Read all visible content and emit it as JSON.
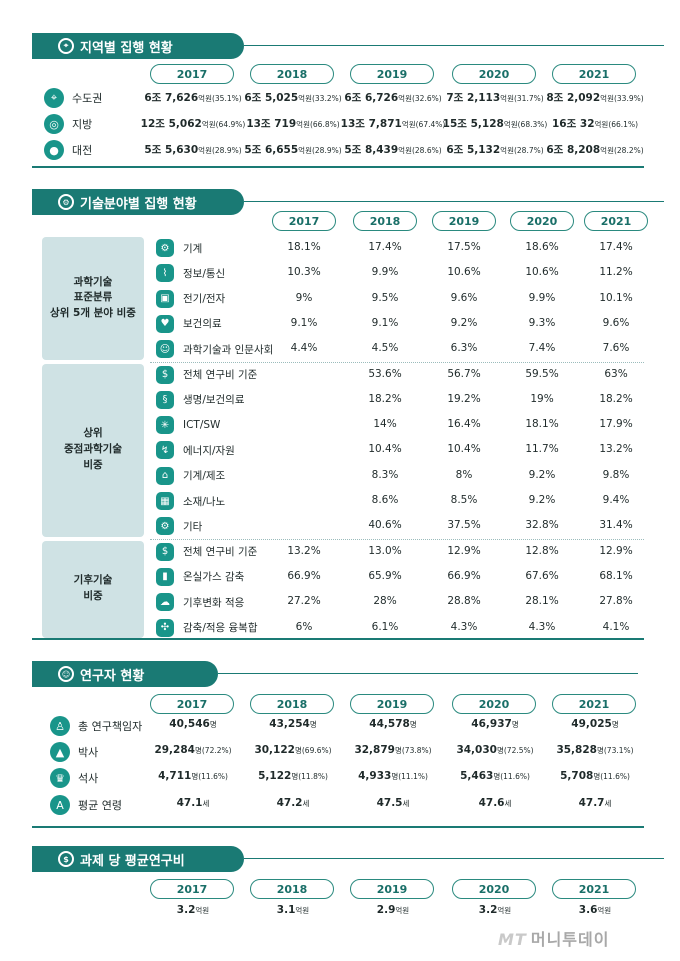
{
  "regional": {
    "title": "지역별 집행 현황",
    "years": [
      "2017",
      "2018",
      "2019",
      "2020",
      "2021"
    ],
    "rows": [
      {
        "label": "수도권",
        "icon": "location-pin-icon",
        "cells": [
          {
            "big": "6조 7,626",
            "unit": "억원",
            "pct": "(35.1%)"
          },
          {
            "big": "6조 5,025",
            "unit": "억원",
            "pct": "(33.2%)"
          },
          {
            "big": "6조 6,726",
            "unit": "억원",
            "pct": "(32.6%)"
          },
          {
            "big": "7조 2,113",
            "unit": "억원",
            "pct": "(31.7%)"
          },
          {
            "big": "8조 2,092",
            "unit": "억원",
            "pct": "(33.9%)"
          }
        ]
      },
      {
        "label": "지방",
        "icon": "map-region-icon",
        "cells": [
          {
            "big": "12조 5,062",
            "unit": "억원",
            "pct": "(64.9%)"
          },
          {
            "big": "13조 719",
            "unit": "억원",
            "pct": "(66.8%)"
          },
          {
            "big": "13조 7,871",
            "unit": "억원",
            "pct": "(67.4%)"
          },
          {
            "big": "15조 5,128",
            "unit": "억원",
            "pct": "(68.3%)"
          },
          {
            "big": "16조 32",
            "unit": "억원",
            "pct": "(66.1%)"
          }
        ]
      },
      {
        "label": "대전",
        "icon": "map-pin-icon",
        "cells": [
          {
            "big": "5조 5,630",
            "unit": "억원",
            "pct": "(28.9%)"
          },
          {
            "big": "5조 6,655",
            "unit": "억원",
            "pct": "(28.9%)"
          },
          {
            "big": "5조 8,439",
            "unit": "억원",
            "pct": "(28.6%)"
          },
          {
            "big": "6조 5,132",
            "unit": "억원",
            "pct": "(28.7%)"
          },
          {
            "big": "6조 8,208",
            "unit": "억원",
            "pct": "(28.2%)"
          }
        ]
      }
    ]
  },
  "tech": {
    "title": "기술분야별 집행 현황",
    "years": [
      "2017",
      "2018",
      "2019",
      "2020",
      "2021"
    ],
    "groups": [
      {
        "label": "과학기술\n표준분류\n상위 5개 분야 비중",
        "rows": [
          {
            "label": "기계",
            "icon": "gear-icon",
            "values": [
              "18.1%",
              "17.4%",
              "17.5%",
              "18.6%",
              "17.4%"
            ]
          },
          {
            "label": "정보/통신",
            "icon": "antenna-icon",
            "values": [
              "10.3%",
              "9.9%",
              "10.6%",
              "10.6%",
              "11.2%"
            ]
          },
          {
            "label": "전기/전자",
            "icon": "chip-icon",
            "values": [
              "9%",
              "9.5%",
              "9.6%",
              "9.9%",
              "10.1%"
            ]
          },
          {
            "label": "보건의료",
            "icon": "health-icon",
            "values": [
              "9.1%",
              "9.1%",
              "9.2%",
              "9.3%",
              "9.6%"
            ]
          },
          {
            "label": "과학기술과 인문사회",
            "icon": "head-icon",
            "values": [
              "4.4%",
              "4.5%",
              "6.3%",
              "7.4%",
              "7.6%"
            ]
          }
        ]
      },
      {
        "label": "상위\n중점과학기술\n비중",
        "rows": [
          {
            "label": "전체 연구비 기준",
            "icon": "money-icon",
            "values": [
              "",
              "53.6%",
              "56.7%",
              "59.5%",
              "63%"
            ]
          },
          {
            "label": "생명/보건의료",
            "icon": "dna-icon",
            "values": [
              "",
              "18.2%",
              "19.2%",
              "19%",
              "18.2%"
            ]
          },
          {
            "label": "ICT/SW",
            "icon": "network-icon",
            "values": [
              "",
              "14%",
              "16.4%",
              "18.1%",
              "17.9%"
            ]
          },
          {
            "label": "에너지/자원",
            "icon": "energy-icon",
            "values": [
              "",
              "10.4%",
              "10.4%",
              "11.7%",
              "13.2%"
            ]
          },
          {
            "label": "기계/제조",
            "icon": "factory-icon",
            "values": [
              "",
              "8.3%",
              "8%",
              "9.2%",
              "9.8%"
            ]
          },
          {
            "label": "소재/나노",
            "icon": "material-icon",
            "values": [
              "",
              "8.6%",
              "8.5%",
              "9.2%",
              "9.4%"
            ]
          },
          {
            "label": "기타",
            "icon": "gears-icon",
            "values": [
              "",
              "40.6%",
              "37.5%",
              "32.8%",
              "31.4%"
            ]
          }
        ]
      },
      {
        "label": "기후기술\n비중",
        "rows": [
          {
            "label": "전체 연구비 기준",
            "icon": "money-icon",
            "values": [
              "13.2%",
              "13.0%",
              "12.9%",
              "12.8%",
              "12.9%"
            ]
          },
          {
            "label": "온실가스 감축",
            "icon": "gas-bottle-icon",
            "values": [
              "66.9%",
              "65.9%",
              "66.9%",
              "67.6%",
              "68.1%"
            ]
          },
          {
            "label": "기후변화 적응",
            "icon": "cloud-rain-icon",
            "values": [
              "27.2%",
              "28%",
              "28.8%",
              "28.1%",
              "27.8%"
            ]
          },
          {
            "label": "감축/적응 융복합",
            "icon": "fusion-icon",
            "values": [
              "6%",
              "6.1%",
              "4.3%",
              "4.3%",
              "4.1%"
            ]
          }
        ]
      }
    ]
  },
  "researchers": {
    "title": "연구자 현황",
    "years": [
      "2017",
      "2018",
      "2019",
      "2020",
      "2021"
    ],
    "rows": [
      {
        "label": "총 연구책임자",
        "icon": "person-icon",
        "cells": [
          {
            "big": "40,546",
            "unit": "명",
            "pct": ""
          },
          {
            "big": "43,254",
            "unit": "명",
            "pct": ""
          },
          {
            "big": "44,578",
            "unit": "명",
            "pct": ""
          },
          {
            "big": "46,937",
            "unit": "명",
            "pct": ""
          },
          {
            "big": "49,025",
            "unit": "명",
            "pct": ""
          }
        ]
      },
      {
        "label": "박사",
        "icon": "graduation-cap-icon",
        "cells": [
          {
            "big": "29,284",
            "unit": "명",
            "pct": "(72.2%)"
          },
          {
            "big": "30,122",
            "unit": "명",
            "pct": "(69.6%)"
          },
          {
            "big": "32,879",
            "unit": "명",
            "pct": "(73.8%)"
          },
          {
            "big": "34,030",
            "unit": "명",
            "pct": "(72.5%)"
          },
          {
            "big": "35,828",
            "unit": "명",
            "pct": "(73.1%)"
          }
        ]
      },
      {
        "label": "석사",
        "icon": "trophy-icon",
        "cells": [
          {
            "big": "4,711",
            "unit": "명",
            "pct": "(11.6%)"
          },
          {
            "big": "5,122",
            "unit": "명",
            "pct": "(11.8%)"
          },
          {
            "big": "4,933",
            "unit": "명",
            "pct": "(11.1%)"
          },
          {
            "big": "5,463",
            "unit": "명",
            "pct": "(11.6%)"
          },
          {
            "big": "5,708",
            "unit": "명",
            "pct": "(11.6%)"
          }
        ]
      },
      {
        "label": "평균 연령",
        "icon": "age-badge-icon",
        "cells": [
          {
            "big": "47.1",
            "unit": "세",
            "pct": ""
          },
          {
            "big": "47.2",
            "unit": "세",
            "pct": ""
          },
          {
            "big": "47.5",
            "unit": "세",
            "pct": ""
          },
          {
            "big": "47.6",
            "unit": "세",
            "pct": ""
          },
          {
            "big": "47.7",
            "unit": "세",
            "pct": ""
          }
        ]
      }
    ]
  },
  "avgcost": {
    "title": "과제 당 평균연구비",
    "years": [
      "2017",
      "2018",
      "2019",
      "2020",
      "2021"
    ],
    "cells": [
      {
        "big": "3.2",
        "unit": "억원"
      },
      {
        "big": "3.1",
        "unit": "억원"
      },
      {
        "big": "2.9",
        "unit": "억원"
      },
      {
        "big": "3.2",
        "unit": "억원"
      },
      {
        "big": "3.6",
        "unit": "억원"
      }
    ]
  },
  "watermark": {
    "mark": "MT",
    "text": "머니투데이"
  }
}
